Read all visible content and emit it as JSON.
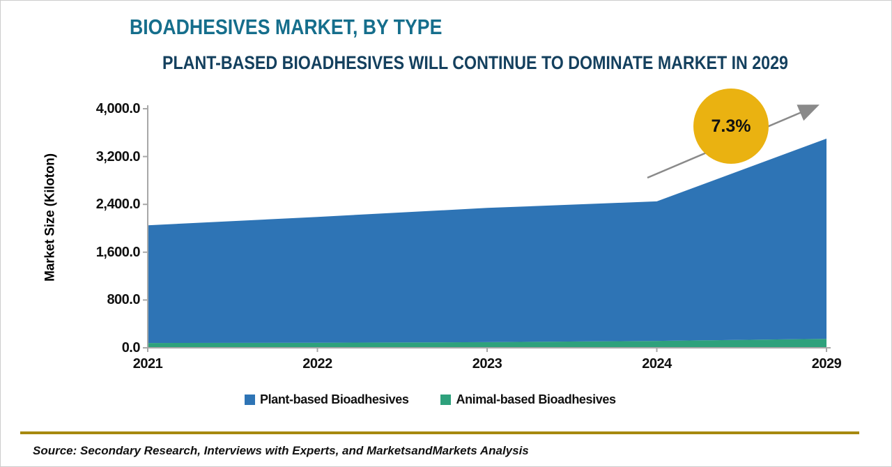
{
  "header": {
    "title": "BIOADHESIVES MARKET, BY TYPE",
    "subtitle": "PLANT-BASED BIOADHESIVES WILL CONTINUE TO DOMINATE MARKET IN 2029"
  },
  "annotation": {
    "growth_label": "7.3%"
  },
  "legend": [
    {
      "label": "Plant-based Bioadhesives",
      "color": "#2E74B5"
    },
    {
      "label": "Animal-based Bioadhesives",
      "color": "#2EA17C"
    }
  ],
  "source_note": "Source: Secondary Research, Interviews with Experts, and MarketsandMarkets Analysis",
  "colors": {
    "title_teal": "#156E8C",
    "subtitle_navy": "#14405E",
    "plant_blue": "#2E74B5",
    "animal_green": "#2EA17C",
    "circle_gold": "#EAB211",
    "arrow_gray": "#8A8A8A",
    "axis_gray": "#A8A8A8",
    "divider_gold": "#A6890F"
  },
  "chart_data": {
    "type": "area",
    "stacked": true,
    "title": "BIOADHESIVES MARKET, BY TYPE",
    "ylabel": "Market Size (Kiloton)",
    "xlabel": "",
    "categories": [
      "2021",
      "2022",
      "2023",
      "2024",
      "2029"
    ],
    "series": [
      {
        "name": "Plant-based Bioadhesives",
        "color": "#2E74B5",
        "values": [
          1970,
          2105,
          2245,
          2335,
          3350
        ]
      },
      {
        "name": "Animal-based Bioadhesives",
        "color": "#2EA17C",
        "values": [
          80,
          85,
          95,
          115,
          150
        ]
      }
    ],
    "stack_order_bottom_up": [
      "Animal-based Bioadhesives",
      "Plant-based Bioadhesives"
    ],
    "stacked_totals": [
      2050,
      2190,
      2340,
      2450,
      3500
    ],
    "ylim": [
      0,
      4000
    ],
    "yticks": [
      "4,000.0",
      "3,200.0",
      "2,400.0",
      "1,600.0",
      "800.0",
      "0.0"
    ],
    "grid": false,
    "legend_position": "bottom",
    "annotations": [
      {
        "text": "7.3%",
        "shape": "circle-with-trend-arrow"
      }
    ]
  }
}
